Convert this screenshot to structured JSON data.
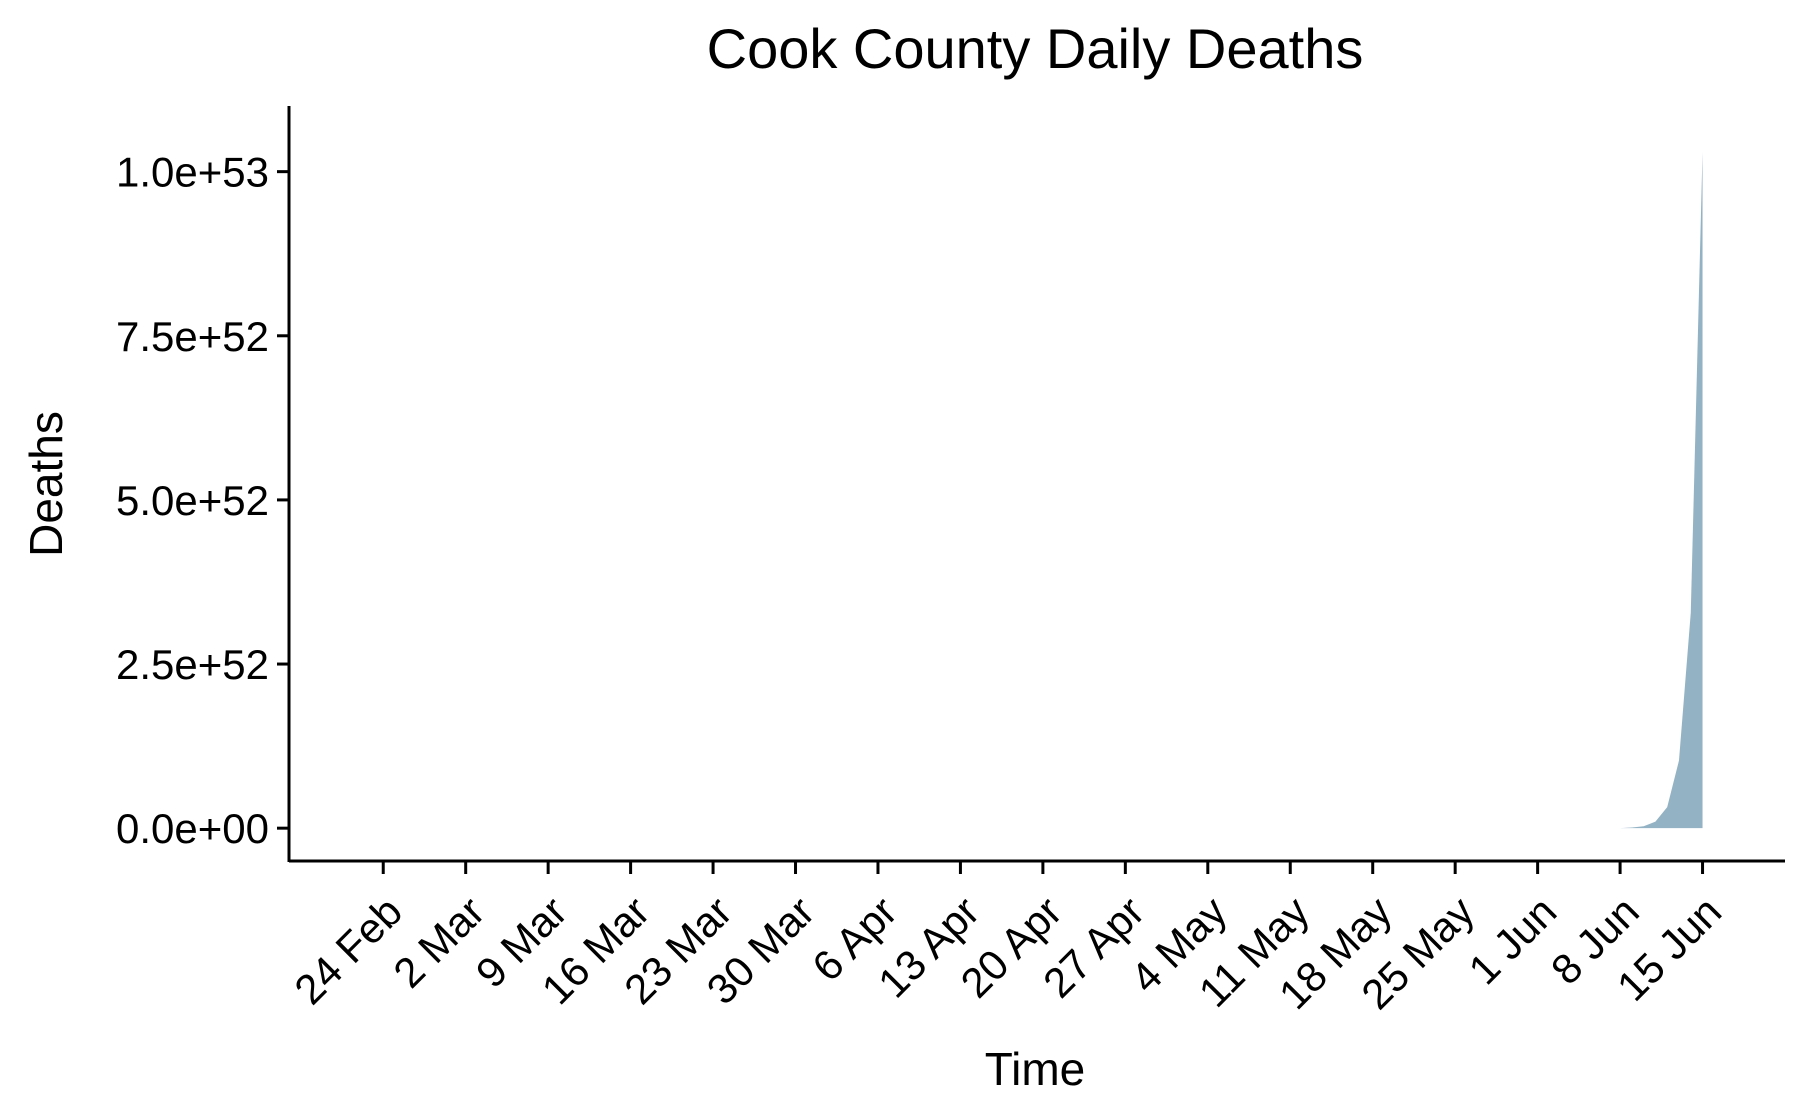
{
  "chart_data": {
    "type": "area",
    "title": "Cook County Daily Deaths",
    "xlabel": "Time",
    "ylabel": "Deaths",
    "x_range": [
      "2020-02-16",
      "2020-06-22"
    ],
    "ylim": [
      -5e+51,
      1.1e+53
    ],
    "y_ticks": [
      {
        "value": 0,
        "label": "0.0e+00"
      },
      {
        "value": 2.5e+52,
        "label": "2.5e+52"
      },
      {
        "value": 5e+52,
        "label": "5.0e+52"
      },
      {
        "value": 7.5e+52,
        "label": "7.5e+52"
      },
      {
        "value": 1e+53,
        "label": "1.0e+53"
      }
    ],
    "x_ticks": [
      {
        "date": "2020-02-24",
        "label": "24 Feb"
      },
      {
        "date": "2020-03-02",
        "label": "2 Mar"
      },
      {
        "date": "2020-03-09",
        "label": "9 Mar"
      },
      {
        "date": "2020-03-16",
        "label": "16 Mar"
      },
      {
        "date": "2020-03-23",
        "label": "23 Mar"
      },
      {
        "date": "2020-03-30",
        "label": "30 Mar"
      },
      {
        "date": "2020-04-06",
        "label": "6 Apr"
      },
      {
        "date": "2020-04-13",
        "label": "13 Apr"
      },
      {
        "date": "2020-04-20",
        "label": "20 Apr"
      },
      {
        "date": "2020-04-27",
        "label": "27 Apr"
      },
      {
        "date": "2020-05-04",
        "label": "4 May"
      },
      {
        "date": "2020-05-11",
        "label": "11 May"
      },
      {
        "date": "2020-05-18",
        "label": "18 May"
      },
      {
        "date": "2020-05-25",
        "label": "25 May"
      },
      {
        "date": "2020-06-01",
        "label": "1 Jun"
      },
      {
        "date": "2020-06-08",
        "label": "8 Jun"
      },
      {
        "date": "2020-06-15",
        "label": "15 Jun"
      }
    ],
    "series": [
      {
        "color": "#93b3c4",
        "points": [
          {
            "x": "2020-06-08",
            "y": 0
          },
          {
            "x": "2020-06-09",
            "y": 1e+50
          },
          {
            "x": "2020-06-10",
            "y": 3e+50
          },
          {
            "x": "2020-06-11",
            "y": 1e+51
          },
          {
            "x": "2020-06-12",
            "y": 3.2e+51
          },
          {
            "x": "2020-06-13",
            "y": 1.03e+52
          },
          {
            "x": "2020-06-14",
            "y": 3.28e+52
          },
          {
            "x": "2020-06-15",
            "y": 1.03e+53
          }
        ]
      }
    ],
    "grid": false,
    "legend": "none"
  }
}
